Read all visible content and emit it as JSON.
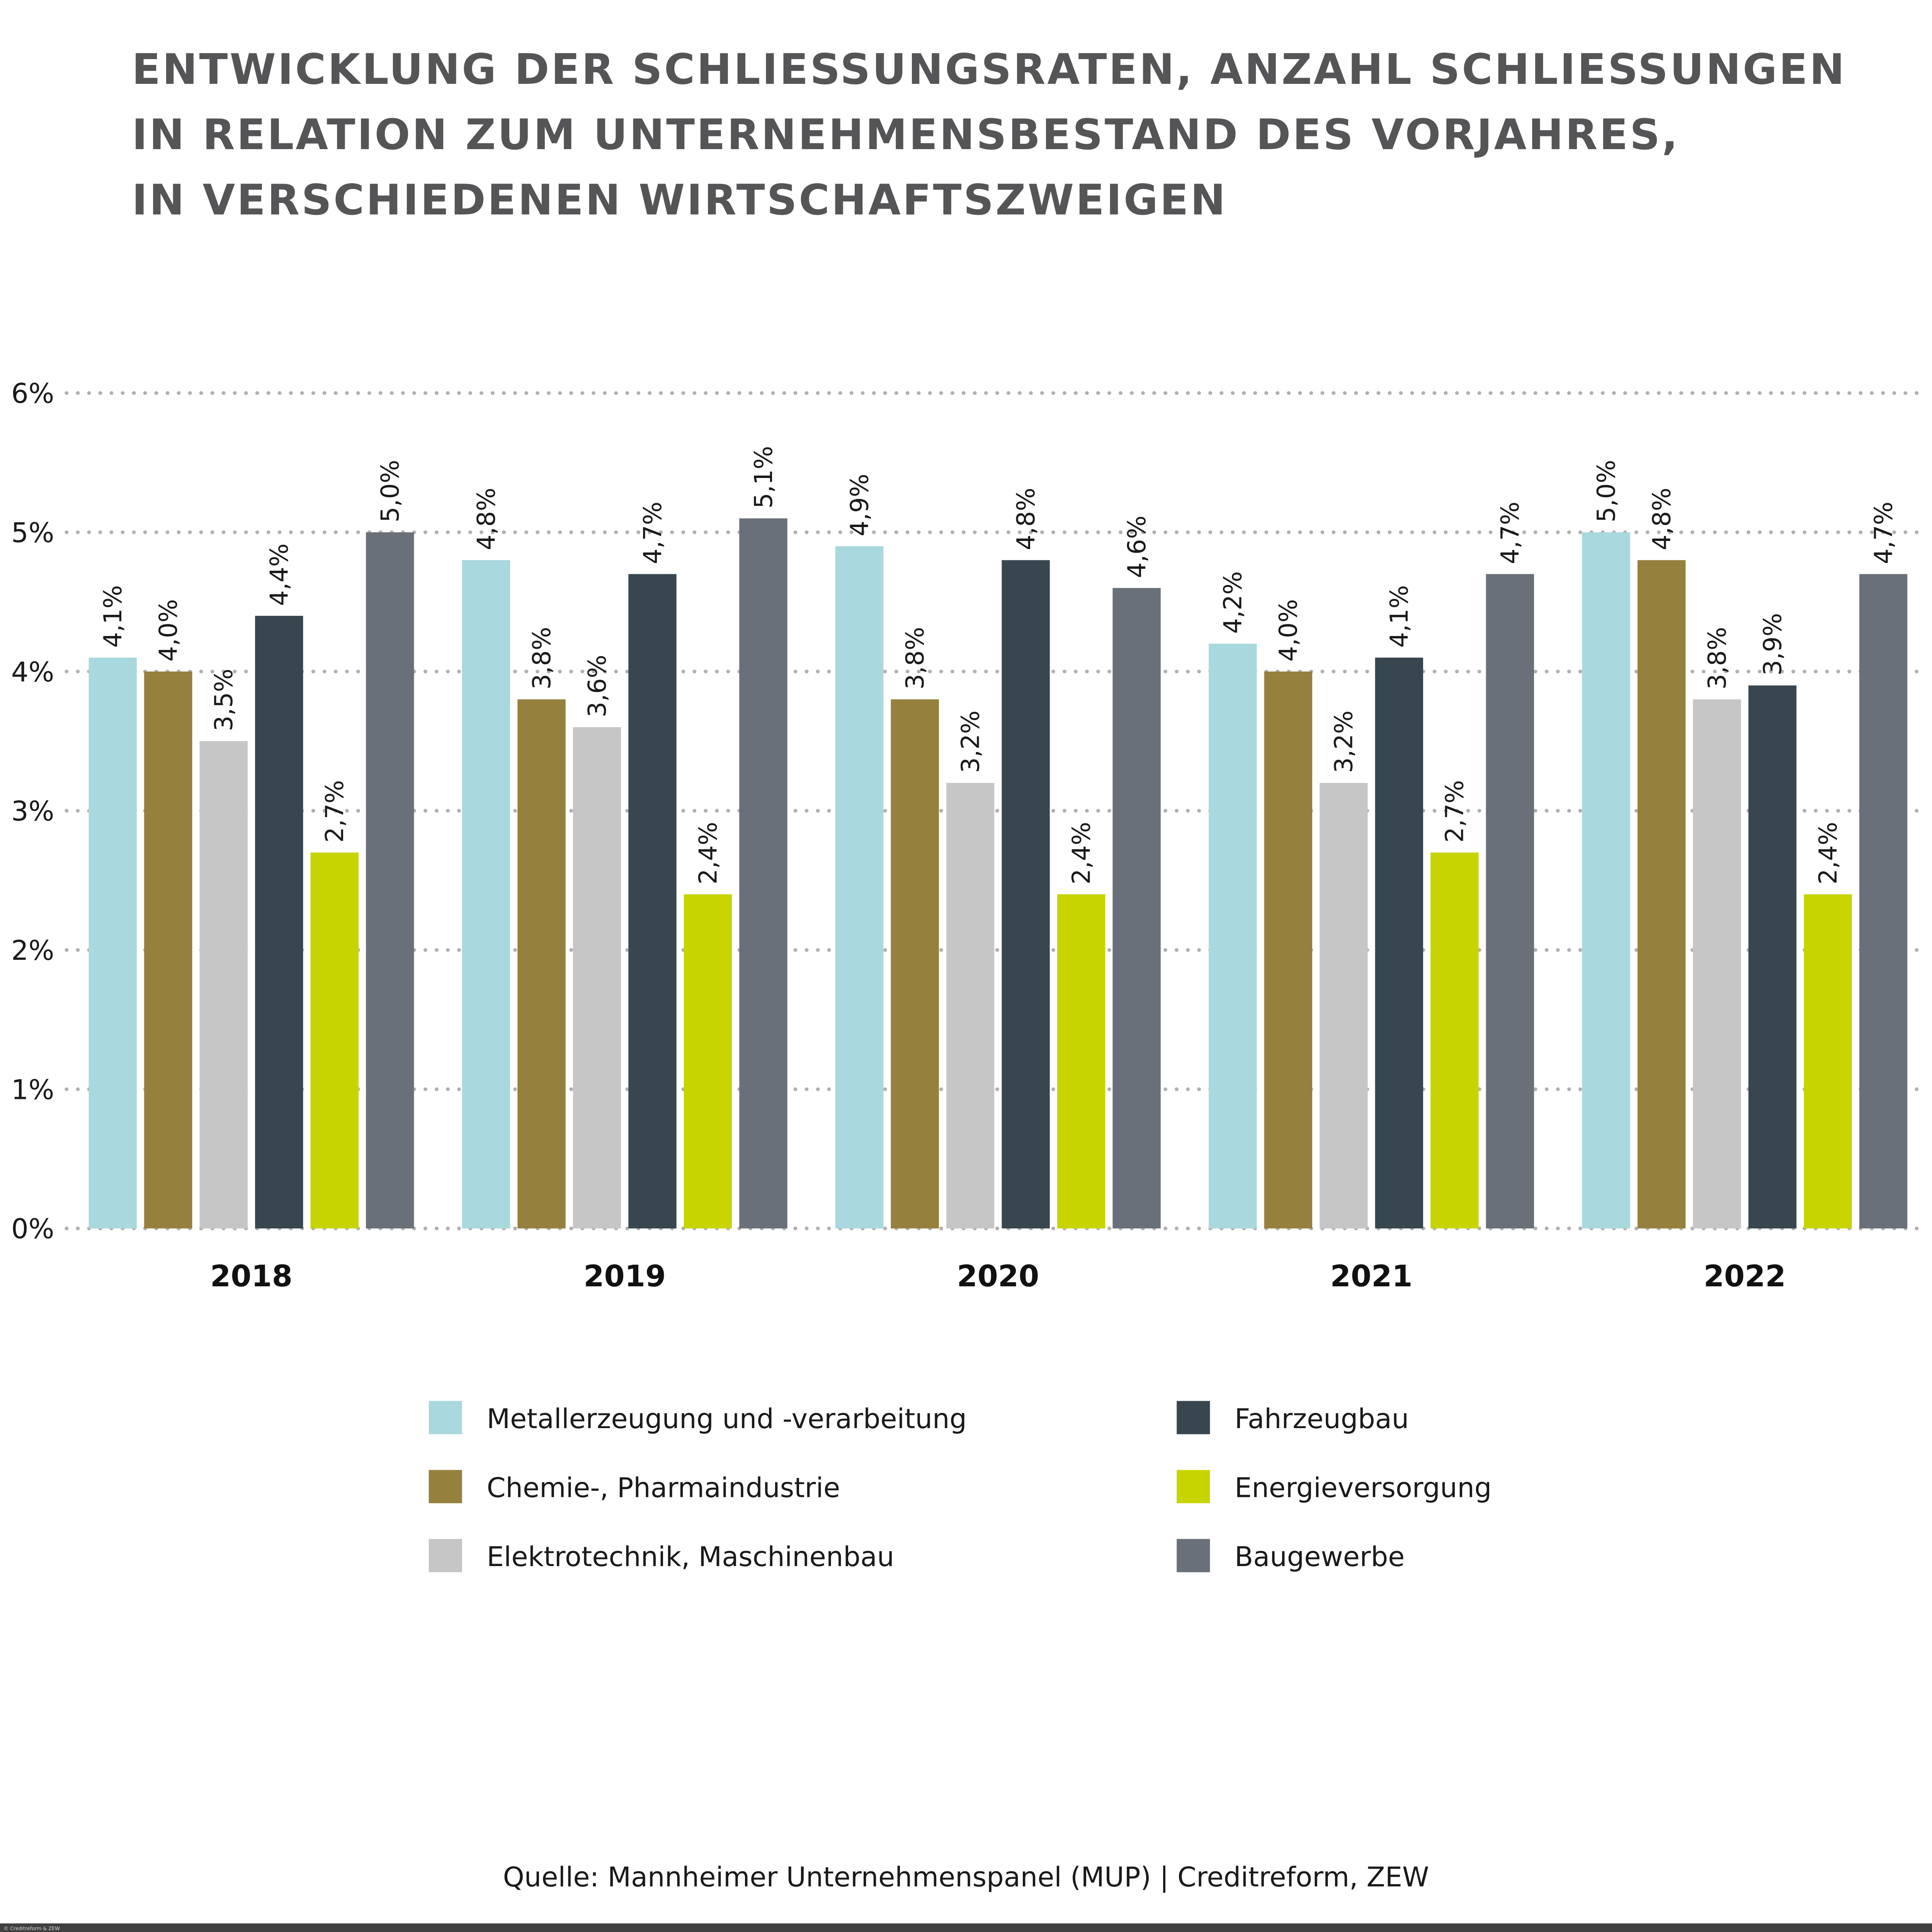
{
  "title_lines": [
    "ENTWICKLUNG DER SCHLIESSUNGSRATEN, ANZAHL SCHLIESSUNGEN",
    "IN RELATION ZUM UNTERNEHMENSBESTAND DES VORJAHRES,",
    "IN VERSCHIEDENEN WIRTSCHAFTSZWEIGEN"
  ],
  "source": "Quelle: Mannheimer Unternehmenspanel (MUP) | Creditreform, ZEW",
  "copyright": "© Creditreform & ZEW",
  "chart_data": {
    "type": "bar",
    "categories": [
      "2018",
      "2019",
      "2020",
      "2021",
      "2022"
    ],
    "ylim": [
      0,
      6
    ],
    "yticks": [
      "0%",
      "1%",
      "2%",
      "3%",
      "4%",
      "5%",
      "6%"
    ],
    "grid": true,
    "legend_position": "bottom",
    "series": [
      {
        "name": "Metallerzeugung und -verarbeitung",
        "color": "#a9d8de",
        "values": [
          4.1,
          4.8,
          4.9,
          4.2,
          5.0
        ],
        "labels": [
          "4,1%",
          "4,8%",
          "4,9%",
          "4,2%",
          "5,0%"
        ]
      },
      {
        "name": "Chemie-, Pharmaindustrie",
        "color": "#95803e",
        "values": [
          4.0,
          3.8,
          3.8,
          4.0,
          4.8
        ],
        "labels": [
          "4,0%",
          "3,8%",
          "3,8%",
          "4,0%",
          "4,8%"
        ]
      },
      {
        "name": "Elektrotechnik, Maschinenbau",
        "color": "#c6c6c6",
        "values": [
          3.5,
          3.6,
          3.2,
          3.2,
          3.8
        ],
        "labels": [
          "3,5%",
          "3,6%",
          "3,2%",
          "3,2%",
          "3,8%"
        ]
      },
      {
        "name": "Fahrzeugbau",
        "color": "#38474f",
        "values": [
          4.4,
          4.7,
          4.8,
          4.1,
          3.9
        ],
        "labels": [
          "4,4%",
          "4,7%",
          "4,8%",
          "4,1%",
          "3,9%"
        ]
      },
      {
        "name": "Energieversorgung",
        "color": "#c8d400",
        "values": [
          2.7,
          2.4,
          2.4,
          2.7,
          2.4
        ],
        "labels": [
          "2,7%",
          "2,4%",
          "2,4%",
          "2,7%",
          "2,4%"
        ]
      },
      {
        "name": "Baugewerbe",
        "color": "#6a7079",
        "values": [
          5.0,
          5.1,
          4.6,
          4.7,
          4.7
        ],
        "labels": [
          "5,0%",
          "5,1%",
          "4,6%",
          "4,7%",
          "4,7%"
        ]
      }
    ]
  }
}
